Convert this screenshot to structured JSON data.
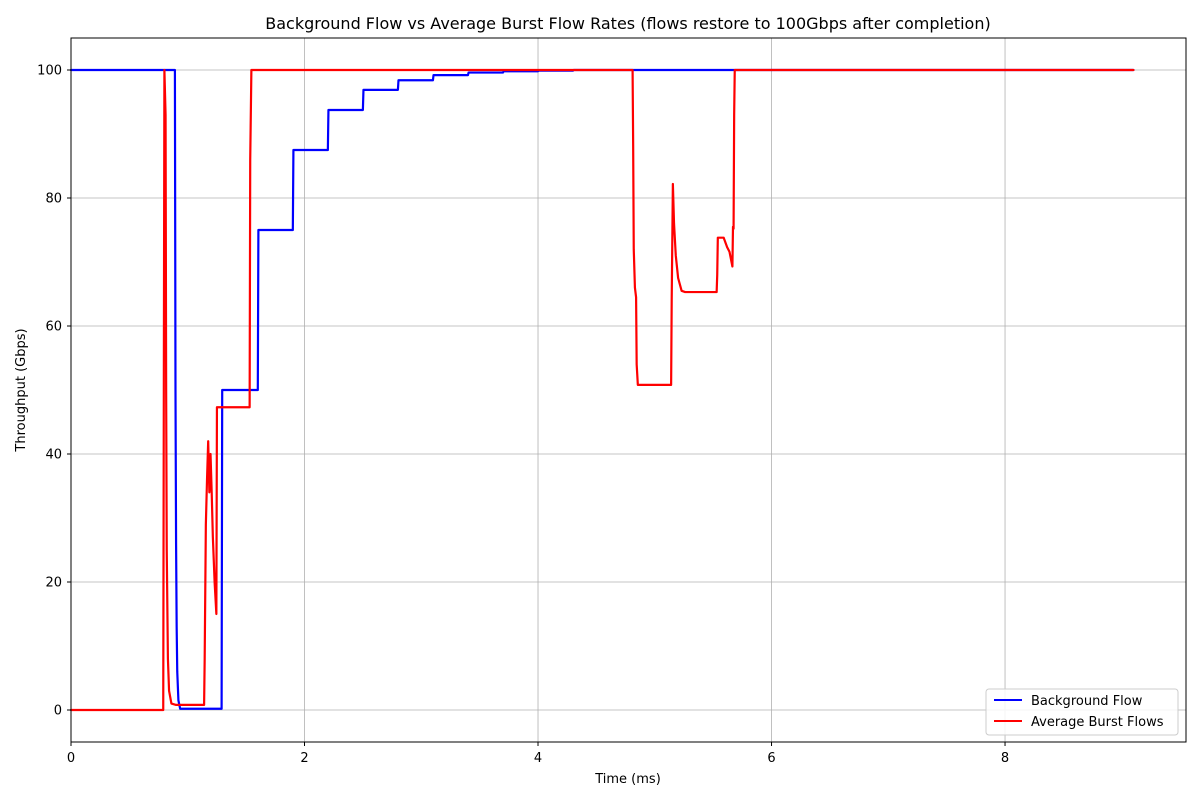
{
  "chart_data": {
    "type": "line",
    "title": "Background Flow vs Average Burst Flow Rates (flows restore to 100Gbps after completion)",
    "xlabel": "Time (ms)",
    "ylabel": "Throughput (Gbps)",
    "xlim": [
      0,
      9.55
    ],
    "ylim": [
      -5,
      105
    ],
    "xticks": [
      0,
      2,
      4,
      6,
      8
    ],
    "yticks": [
      0,
      20,
      40,
      60,
      80,
      100
    ],
    "grid": true,
    "legend_position": "bottom-right",
    "series": [
      {
        "name": "Background Flow",
        "color": "#0000ff",
        "points": [
          [
            0,
            100
          ],
          [
            0.89,
            100
          ],
          [
            0.895,
            50
          ],
          [
            0.9,
            26
          ],
          [
            0.905,
            13
          ],
          [
            0.91,
            6
          ],
          [
            0.92,
            1.5
          ],
          [
            0.935,
            0.2
          ],
          [
            1.29,
            0.2
          ],
          [
            1.295,
            50
          ],
          [
            1.6,
            50
          ],
          [
            1.605,
            75
          ],
          [
            1.9,
            75
          ],
          [
            1.905,
            87.5
          ],
          [
            2.2,
            87.5
          ],
          [
            2.205,
            93.75
          ],
          [
            2.5,
            93.75
          ],
          [
            2.505,
            96.9
          ],
          [
            2.8,
            96.9
          ],
          [
            2.805,
            98.4
          ],
          [
            3.1,
            98.4
          ],
          [
            3.105,
            99.2
          ],
          [
            3.4,
            99.2
          ],
          [
            3.405,
            99.6
          ],
          [
            3.7,
            99.6
          ],
          [
            3.705,
            99.8
          ],
          [
            4.0,
            99.8
          ],
          [
            4.005,
            99.9
          ],
          [
            4.3,
            99.9
          ],
          [
            4.305,
            100
          ],
          [
            9.1,
            100
          ]
        ]
      },
      {
        "name": "Average Burst Flows",
        "color": "#ff0000",
        "points": [
          [
            0,
            0
          ],
          [
            0.79,
            0
          ],
          [
            0.8,
            100
          ],
          [
            0.81,
            93
          ],
          [
            0.815,
            50
          ],
          [
            0.82,
            25
          ],
          [
            0.83,
            8
          ],
          [
            0.84,
            3
          ],
          [
            0.86,
            1
          ],
          [
            0.9,
            0.8
          ],
          [
            1.14,
            0.8
          ],
          [
            1.145,
            8
          ],
          [
            1.155,
            29
          ],
          [
            1.165,
            36
          ],
          [
            1.175,
            42
          ],
          [
            1.185,
            34
          ],
          [
            1.195,
            40
          ],
          [
            1.205,
            34
          ],
          [
            1.215,
            27
          ],
          [
            1.23,
            20
          ],
          [
            1.245,
            15
          ],
          [
            1.25,
            47.3
          ],
          [
            1.53,
            47.3
          ],
          [
            1.535,
            86
          ],
          [
            1.545,
            100
          ],
          [
            4.81,
            100
          ],
          [
            4.815,
            88
          ],
          [
            4.82,
            72
          ],
          [
            4.83,
            66
          ],
          [
            4.84,
            64.5
          ],
          [
            4.845,
            54
          ],
          [
            4.855,
            50.8
          ],
          [
            5.14,
            50.8
          ],
          [
            5.145,
            64
          ],
          [
            5.155,
            82.2
          ],
          [
            5.165,
            76
          ],
          [
            5.18,
            71
          ],
          [
            5.2,
            67.5
          ],
          [
            5.23,
            65.5
          ],
          [
            5.26,
            65.3
          ],
          [
            5.53,
            65.3
          ],
          [
            5.535,
            68
          ],
          [
            5.54,
            73.8
          ],
          [
            5.59,
            73.8
          ],
          [
            5.62,
            72.3
          ],
          [
            5.64,
            71.6
          ],
          [
            5.665,
            69.3
          ],
          [
            5.67,
            75.5
          ],
          [
            5.675,
            75.2
          ],
          [
            5.68,
            93
          ],
          [
            5.685,
            100
          ],
          [
            9.1,
            100
          ]
        ]
      }
    ]
  }
}
